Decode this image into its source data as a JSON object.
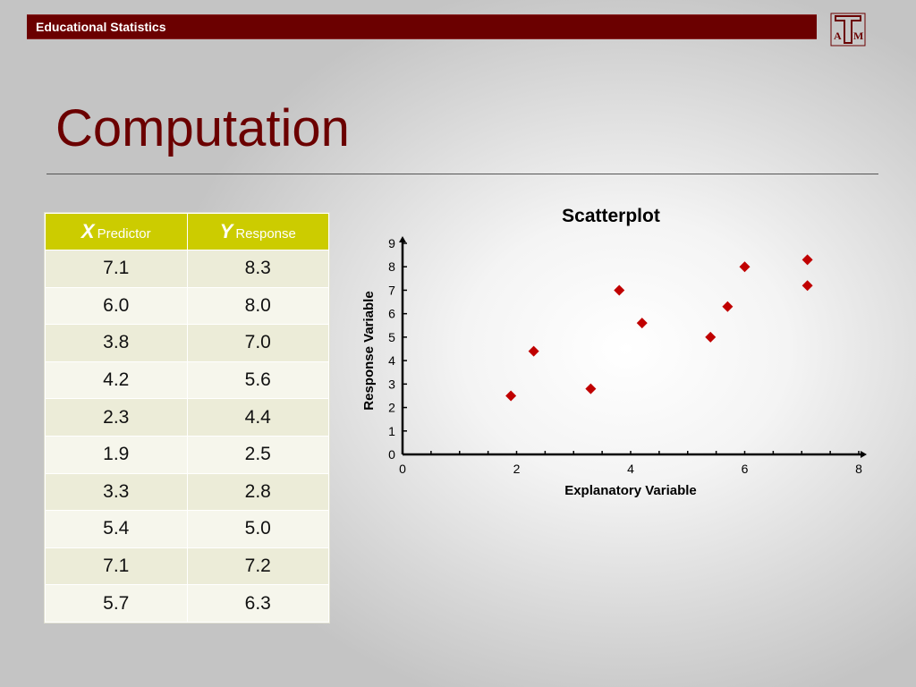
{
  "header": {
    "title": "Educational Statistics",
    "logo_text": "ATM"
  },
  "slide": {
    "title": "Computation"
  },
  "table": {
    "columns": [
      {
        "var": "X",
        "label": "Predictor"
      },
      {
        "var": "Y",
        "label": "Response"
      }
    ],
    "rows": [
      [
        "7.1",
        "8.3"
      ],
      [
        "6.0",
        "8.0"
      ],
      [
        "3.8",
        "7.0"
      ],
      [
        "4.2",
        "5.6"
      ],
      [
        "2.3",
        "4.4"
      ],
      [
        "1.9",
        "2.5"
      ],
      [
        "3.3",
        "2.8"
      ],
      [
        "5.4",
        "5.0"
      ],
      [
        "7.1",
        "7.2"
      ],
      [
        "5.7",
        "6.3"
      ]
    ]
  },
  "chart_data": {
    "type": "scatter",
    "title": "Scatterplot",
    "xlabel": "Explanatory Variable",
    "ylabel": "Response Variable",
    "xlim": [
      0,
      8
    ],
    "ylim": [
      0,
      9
    ],
    "xticks": [
      0,
      2,
      4,
      6,
      8
    ],
    "yticks": [
      0,
      1,
      2,
      3,
      4,
      5,
      6,
      7,
      8,
      9
    ],
    "grid": false,
    "marker": "diamond",
    "color": "#c00000",
    "x": [
      7.1,
      6.0,
      3.8,
      4.2,
      2.3,
      1.9,
      3.3,
      5.4,
      7.1,
      5.7
    ],
    "y": [
      8.3,
      8.0,
      7.0,
      5.6,
      4.4,
      2.5,
      2.8,
      5.0,
      7.2,
      6.3
    ]
  },
  "colors": {
    "brand": "#6b0000",
    "table_header": "#cccc00",
    "marker": "#c00000"
  }
}
